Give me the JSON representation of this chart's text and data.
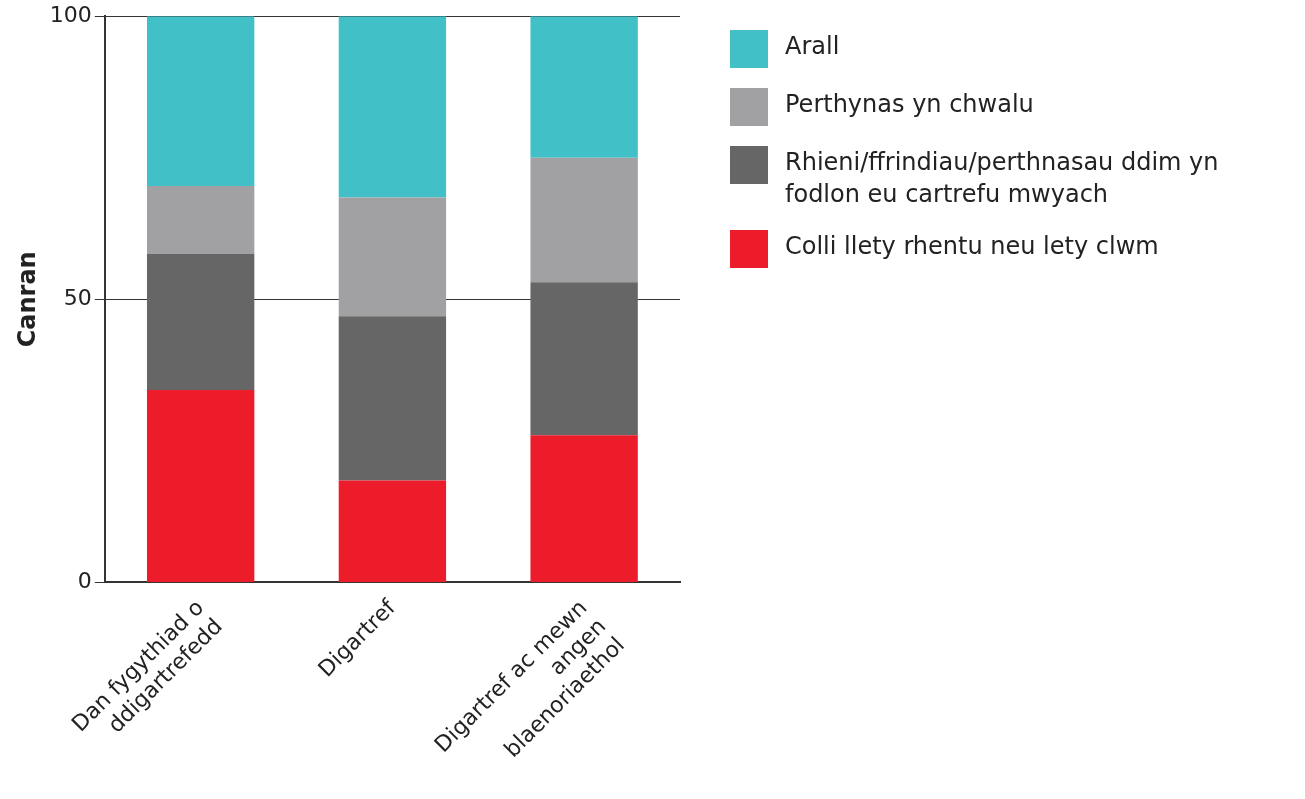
{
  "chart_data": {
    "type": "bar",
    "stacked": true,
    "ylabel": "Canran",
    "categories": [
      "Dan fygythiad o ddigartrefedd",
      "Digartref",
      "Digartref ac mewn angen blaenoriaethol"
    ],
    "series": [
      {
        "name": "Colli llety rhentu neu lety clwm",
        "color": "#ed1c2b",
        "values": [
          34,
          18,
          26
        ]
      },
      {
        "name": "Rhieni/ffrindiau/perthnasau ddim yn fodlon eu cartrefu mwyach",
        "color": "#666666",
        "values": [
          24,
          29,
          27
        ]
      },
      {
        "name": "Perthynas yn chwalu",
        "color": "#a1a1a4",
        "values": [
          12,
          21,
          22
        ]
      },
      {
        "name": "Arall",
        "color": "#41c0c8",
        "values": [
          30,
          32,
          25
        ]
      }
    ],
    "ylim": [
      0,
      100
    ],
    "yticks": [
      0,
      50,
      100
    ],
    "grid": "y",
    "legend": "right"
  }
}
